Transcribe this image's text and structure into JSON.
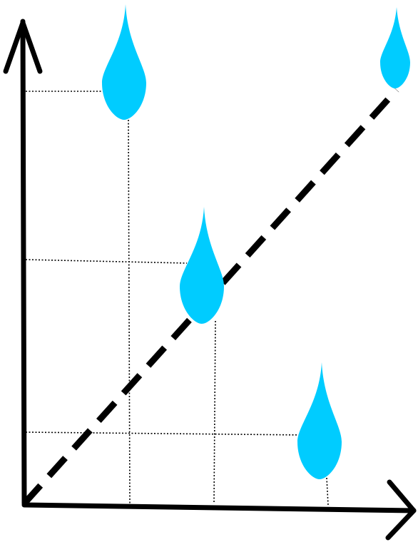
{
  "diagram": {
    "kind": "scatter-with-trend",
    "marker_icon": "water-drop-icon",
    "colors": {
      "drop": "#00ccff",
      "axes": "#000000",
      "guides": "#000000",
      "trend": "#000000",
      "background": "#ffffff"
    },
    "show_guides": true,
    "trend_style": "dashed",
    "drop_count": 4
  }
}
